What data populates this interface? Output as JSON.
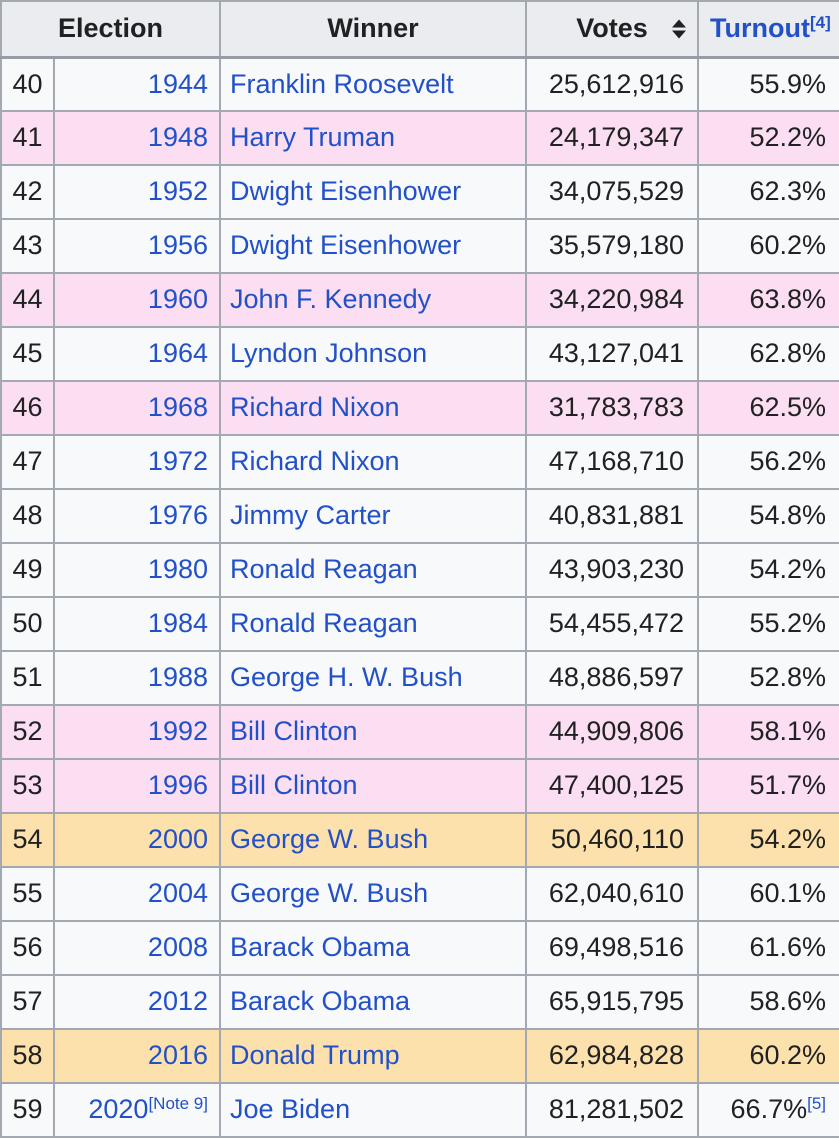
{
  "table": {
    "headers": {
      "election": "Election",
      "winner": "Winner",
      "votes": "Votes",
      "turnout": "Turnout",
      "turnout_ref": "[4]"
    },
    "colors": {
      "header_bg": "#EAECF0",
      "row_bg": "#F8F9FA",
      "pink_row": "#FCDEF3",
      "orange_row": "#FCE1AC",
      "border": "#A2A9B1",
      "link": "#2150C8",
      "text": "#202122"
    },
    "rows": [
      {
        "number": "40",
        "year": "1944",
        "year_note": "",
        "winner": "Franklin Roosevelt",
        "votes": "25,612,916",
        "turnout": "55.9%",
        "turnout_note": "",
        "highlight": "none"
      },
      {
        "number": "41",
        "year": "1948",
        "year_note": "",
        "winner": "Harry Truman",
        "votes": "24,179,347",
        "turnout": "52.2%",
        "turnout_note": "",
        "highlight": "pink"
      },
      {
        "number": "42",
        "year": "1952",
        "year_note": "",
        "winner": "Dwight Eisenhower",
        "votes": "34,075,529",
        "turnout": "62.3%",
        "turnout_note": "",
        "highlight": "none"
      },
      {
        "number": "43",
        "year": "1956",
        "year_note": "",
        "winner": "Dwight Eisenhower",
        "votes": "35,579,180",
        "turnout": "60.2%",
        "turnout_note": "",
        "highlight": "none"
      },
      {
        "number": "44",
        "year": "1960",
        "year_note": "",
        "winner": "John F. Kennedy",
        "votes": "34,220,984",
        "turnout": "63.8%",
        "turnout_note": "",
        "highlight": "pink"
      },
      {
        "number": "45",
        "year": "1964",
        "year_note": "",
        "winner": "Lyndon Johnson",
        "votes": "43,127,041",
        "turnout": "62.8%",
        "turnout_note": "",
        "highlight": "none"
      },
      {
        "number": "46",
        "year": "1968",
        "year_note": "",
        "winner": "Richard Nixon",
        "votes": "31,783,783",
        "turnout": "62.5%",
        "turnout_note": "",
        "highlight": "pink"
      },
      {
        "number": "47",
        "year": "1972",
        "year_note": "",
        "winner": "Richard Nixon",
        "votes": "47,168,710",
        "turnout": "56.2%",
        "turnout_note": "",
        "highlight": "none"
      },
      {
        "number": "48",
        "year": "1976",
        "year_note": "",
        "winner": "Jimmy Carter",
        "votes": "40,831,881",
        "turnout": "54.8%",
        "turnout_note": "",
        "highlight": "none"
      },
      {
        "number": "49",
        "year": "1980",
        "year_note": "",
        "winner": "Ronald Reagan",
        "votes": "43,903,230",
        "turnout": "54.2%",
        "turnout_note": "",
        "highlight": "none"
      },
      {
        "number": "50",
        "year": "1984",
        "year_note": "",
        "winner": "Ronald Reagan",
        "votes": "54,455,472",
        "turnout": "55.2%",
        "turnout_note": "",
        "highlight": "none"
      },
      {
        "number": "51",
        "year": "1988",
        "year_note": "",
        "winner": "George H. W. Bush",
        "votes": "48,886,597",
        "turnout": "52.8%",
        "turnout_note": "",
        "highlight": "none"
      },
      {
        "number": "52",
        "year": "1992",
        "year_note": "",
        "winner": "Bill Clinton",
        "votes": "44,909,806",
        "turnout": "58.1%",
        "turnout_note": "",
        "highlight": "pink"
      },
      {
        "number": "53",
        "year": "1996",
        "year_note": "",
        "winner": "Bill Clinton",
        "votes": "47,400,125",
        "turnout": "51.7%",
        "turnout_note": "",
        "highlight": "pink"
      },
      {
        "number": "54",
        "year": "2000",
        "year_note": "",
        "winner": "George W. Bush",
        "votes": "50,460,110",
        "turnout": "54.2%",
        "turnout_note": "",
        "highlight": "orange"
      },
      {
        "number": "55",
        "year": "2004",
        "year_note": "",
        "winner": "George W. Bush",
        "votes": "62,040,610",
        "turnout": "60.1%",
        "turnout_note": "",
        "highlight": "none"
      },
      {
        "number": "56",
        "year": "2008",
        "year_note": "",
        "winner": "Barack Obama",
        "votes": "69,498,516",
        "turnout": "61.6%",
        "turnout_note": "",
        "highlight": "none"
      },
      {
        "number": "57",
        "year": "2012",
        "year_note": "",
        "winner": "Barack Obama",
        "votes": "65,915,795",
        "turnout": "58.6%",
        "turnout_note": "",
        "highlight": "none"
      },
      {
        "number": "58",
        "year": "2016",
        "year_note": "",
        "winner": "Donald Trump",
        "votes": "62,984,828",
        "turnout": "60.2%",
        "turnout_note": "",
        "highlight": "orange"
      },
      {
        "number": "59",
        "year": "2020",
        "year_note": "[Note 9]",
        "winner": "Joe Biden",
        "votes": "81,281,502",
        "turnout": "66.7%",
        "turnout_note": "[5]",
        "highlight": "none"
      }
    ]
  }
}
